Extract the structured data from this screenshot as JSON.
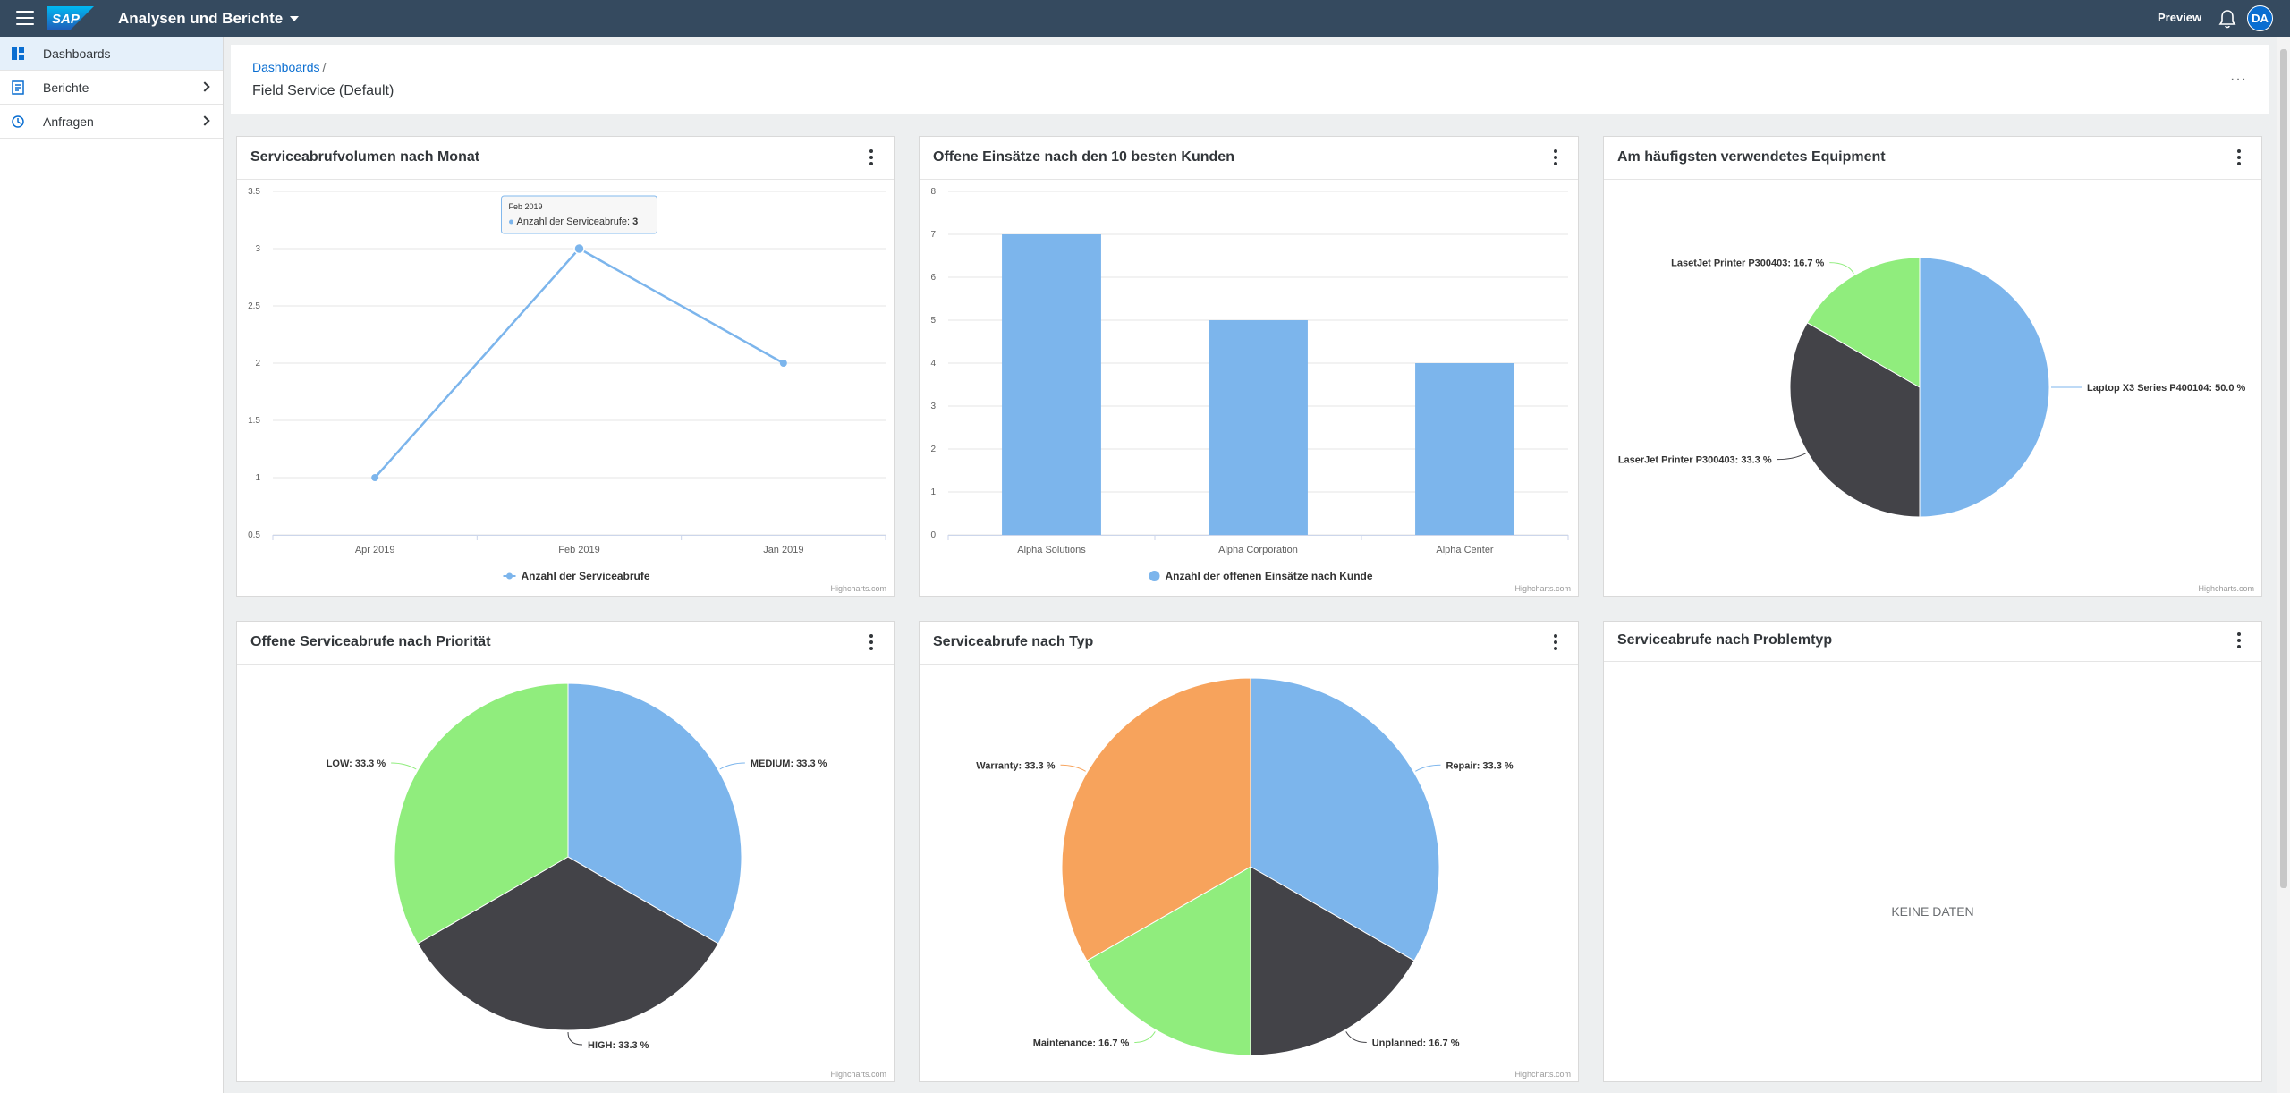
{
  "shell": {
    "logo": "SAP",
    "title": "Analysen und Berichte",
    "preview": "Preview",
    "avatar": "DA"
  },
  "sidebar": {
    "items": [
      {
        "label": "Dashboards",
        "icon": "dashboard-icon"
      },
      {
        "label": "Berichte",
        "icon": "report-icon"
      },
      {
        "label": "Anfragen",
        "icon": "request-icon"
      }
    ]
  },
  "header": {
    "breadcrumb": "Dashboards",
    "breadcrumb_sep": "/",
    "title": "Field Service (Default)",
    "more": "···"
  },
  "cards": {
    "line": {
      "title": "Serviceabrufvolumen nach Monat",
      "credits": "Highcharts.com"
    },
    "bar": {
      "title": "Offene Einsätze nach den 10 besten Kunden",
      "credits": "Highcharts.com"
    },
    "equipment": {
      "title": "Am häufigsten verwendetes Equipment",
      "credits": "Highcharts.com"
    },
    "priority": {
      "title": "Offene Serviceabrufe nach Priorität",
      "credits": "Highcharts.com"
    },
    "type": {
      "title": "Serviceabrufe nach Typ",
      "credits": "Highcharts.com"
    },
    "problem": {
      "title": "Serviceabrufe nach Problemtyp",
      "nodata": "KEINE DATEN"
    }
  },
  "chart_data": [
    {
      "id": "line",
      "type": "line",
      "categories": [
        "Apr 2019",
        "Feb 2019",
        "Jan 2019"
      ],
      "series": [
        {
          "name": "Anzahl der Serviceabrufe",
          "values": [
            1,
            3,
            2
          ],
          "color": "#7cb5ec"
        }
      ],
      "ylim": [
        0.5,
        3.5
      ],
      "yticks": [
        "0.5",
        "1",
        "1.5",
        "2",
        "2.5",
        "3",
        "3.5"
      ],
      "tooltip": {
        "category": "Feb 2019",
        "label": "Anzahl der Serviceabrufe: ",
        "value": "3"
      },
      "legend": "bottom"
    },
    {
      "id": "bar",
      "type": "bar",
      "categories": [
        "Alpha Solutions",
        "Alpha Corporation",
        "Alpha Center"
      ],
      "series": [
        {
          "name": "Anzahl der offenen Einsätze nach Kunde",
          "values": [
            7,
            5,
            4
          ],
          "color": "#7cb5ec"
        }
      ],
      "ylim": [
        0,
        8
      ],
      "yticks": [
        "0",
        "1",
        "2",
        "3",
        "4",
        "5",
        "6",
        "7",
        "8"
      ],
      "legend": "bottom"
    },
    {
      "id": "equipment",
      "type": "pie",
      "slices": [
        {
          "label": "Laptop X3 Series P400104: 50.0 %",
          "value": 50.0,
          "color": "#7cb5ec"
        },
        {
          "label": "LaserJet Printer P300403: 33.3 %",
          "value": 33.3,
          "color": "#434348"
        },
        {
          "label": "LasetJet Printer P300403: 16.7 %",
          "value": 16.7,
          "color": "#90ed7d"
        }
      ]
    },
    {
      "id": "priority",
      "type": "pie",
      "slices": [
        {
          "label": "MEDIUM: 33.3 %",
          "value": 33.3,
          "color": "#7cb5ec"
        },
        {
          "label": "HIGH: 33.3 %",
          "value": 33.3,
          "color": "#434348"
        },
        {
          "label": "LOW: 33.3 %",
          "value": 33.3,
          "color": "#90ed7d"
        }
      ]
    },
    {
      "id": "type",
      "type": "pie",
      "slices": [
        {
          "label": "Repair: 33.3 %",
          "value": 33.3,
          "color": "#7cb5ec"
        },
        {
          "label": "Unplanned: 16.7 %",
          "value": 16.7,
          "color": "#434348"
        },
        {
          "label": "Maintenance: 16.7 %",
          "value": 16.7,
          "color": "#90ed7d"
        },
        {
          "label": "Warranty: 33.3 %",
          "value": 33.3,
          "color": "#f7a35c"
        }
      ]
    }
  ]
}
